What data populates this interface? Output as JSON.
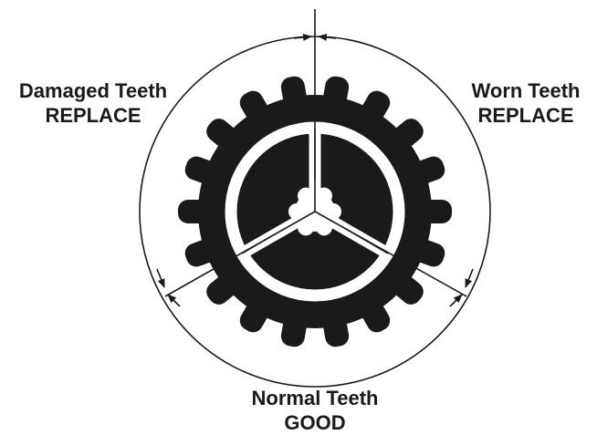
{
  "diagram": {
    "labels": {
      "damaged": {
        "line1": "Damaged Teeth",
        "line2": "REPLACE"
      },
      "worn": {
        "line1": "Worn Teeth",
        "line2": "REPLACE"
      },
      "normal": {
        "line1": "Normal Teeth",
        "line2": "GOOD"
      }
    },
    "colors": {
      "ink": "#1a1a1a",
      "background": "#ffffff"
    }
  }
}
